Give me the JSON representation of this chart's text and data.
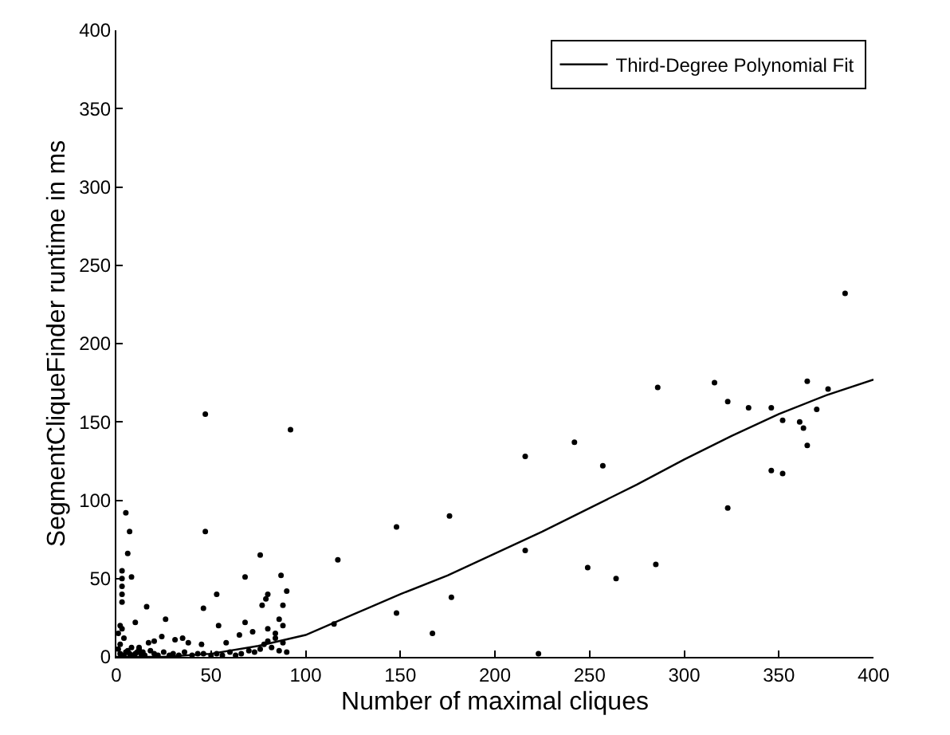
{
  "chart_data": {
    "type": "scatter",
    "xlabel": "Number of maximal cliques",
    "ylabel": "SegmentCliqueFinder runtime in ms",
    "xlim": [
      0,
      400
    ],
    "ylim": [
      0,
      400
    ],
    "xticks": [
      0,
      50,
      100,
      150,
      200,
      250,
      300,
      350,
      400
    ],
    "yticks": [
      0,
      50,
      100,
      150,
      200,
      250,
      300,
      350,
      400
    ],
    "legend": "top right",
    "series": [
      {
        "marker": "circle",
        "color": "#000000",
        "x": [
          47,
          92,
          385,
          286,
          242,
          216,
          257,
          148,
          176,
          117,
          249,
          264,
          285,
          216,
          177,
          148,
          115,
          167,
          223,
          316,
          323,
          334,
          346,
          365,
          376,
          370,
          352,
          361,
          363,
          365,
          346,
          352,
          323,
          5,
          7,
          47,
          6,
          76,
          68,
          87,
          3,
          3,
          3,
          3,
          3,
          8,
          16,
          53,
          46,
          26,
          77,
          79,
          80,
          86,
          88,
          90,
          68,
          54,
          2,
          1,
          2,
          4,
          1,
          3,
          5,
          2,
          6,
          8,
          10,
          12,
          14,
          4,
          7,
          9,
          11,
          13,
          15,
          18,
          20,
          22,
          25,
          28,
          30,
          33,
          36,
          40,
          43,
          46,
          50,
          53,
          56,
          60,
          63,
          66,
          70,
          73,
          76,
          78,
          80,
          82,
          84,
          86,
          88,
          90,
          20,
          35,
          45,
          58,
          65,
          72,
          80,
          84,
          88,
          10,
          12,
          17,
          24,
          31,
          38
        ],
        "values": [
          155,
          145,
          232,
          172,
          137,
          128,
          122,
          83,
          90,
          62,
          57,
          50,
          59,
          68,
          38,
          28,
          21,
          15,
          2,
          175,
          163,
          159,
          159,
          176,
          171,
          158,
          151,
          150,
          146,
          135,
          119,
          117,
          95,
          92,
          80,
          80,
          66,
          65,
          51,
          52,
          35,
          40,
          45,
          50,
          55,
          51,
          32,
          40,
          31,
          24,
          33,
          37,
          40,
          24,
          33,
          42,
          22,
          20,
          2,
          5,
          8,
          12,
          15,
          18,
          3,
          20,
          4,
          6,
          2,
          5,
          3,
          1,
          2,
          1,
          3,
          2,
          1,
          4,
          2,
          1,
          3,
          1,
          2,
          1,
          3,
          1,
          2,
          2,
          1,
          2,
          1,
          3,
          1,
          2,
          4,
          3,
          5,
          8,
          10,
          6,
          12,
          4,
          9,
          3,
          10,
          12,
          8,
          9,
          14,
          16,
          18,
          15,
          20,
          22,
          6,
          9,
          13,
          11,
          9
        ]
      },
      {
        "type": "line",
        "name": "Third-Degree Polynomial Fit",
        "color": "#000000",
        "marker": "none",
        "line_style": "solid",
        "x": [
          0,
          25,
          50,
          75,
          100,
          125,
          150,
          175,
          200,
          225,
          250,
          275,
          300,
          325,
          350,
          375,
          400
        ],
        "values": [
          0,
          0,
          2,
          7,
          14,
          27,
          40,
          52,
          66,
          80,
          95,
          110,
          126,
          141,
          155,
          167,
          177
        ]
      }
    ]
  }
}
